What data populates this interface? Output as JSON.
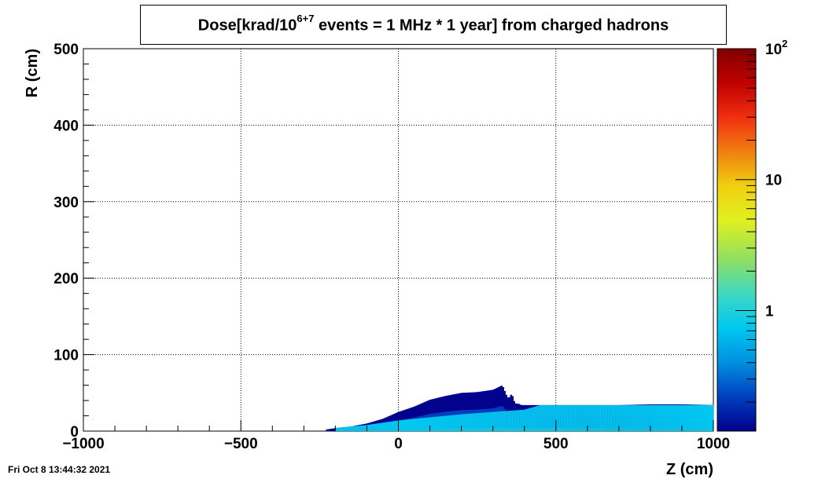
{
  "chart_data": {
    "type": "heatmap",
    "title_main": "Dose[krad/10",
    "title_sup": "6+7",
    "title_rest": " events = 1 MHz * 1 year] from charged hadrons",
    "xlabel": "Z (cm)",
    "ylabel": "R (cm)",
    "xlim": [
      -1000,
      1000
    ],
    "ylim": [
      0,
      500
    ],
    "x_ticks": [
      -1000,
      -500,
      0,
      500,
      1000
    ],
    "x_tick_labels": [
      "−1000",
      "−500",
      "0",
      "500",
      "1000"
    ],
    "y_ticks": [
      0,
      100,
      200,
      300,
      400,
      500
    ],
    "y_tick_labels": [
      "0",
      "100",
      "200",
      "300",
      "400",
      "500"
    ],
    "grid": true,
    "zscale": "log",
    "zlim": [
      0.12,
      100
    ],
    "z_tick_labels": [
      {
        "value": 100,
        "base": "10",
        "sup": "2"
      },
      {
        "value": 10,
        "base": "10",
        "sup": ""
      },
      {
        "value": 1,
        "base": "1",
        "sup": ""
      }
    ],
    "colormap": [
      "#00008c",
      "#0040c0",
      "#0090e0",
      "#00c8f0",
      "#40d8c0",
      "#90e060",
      "#e0f020",
      "#f0d010",
      "#f08010",
      "#f03010",
      "#c00000",
      "#800000"
    ],
    "envelope_z": [
      -230,
      -200,
      -150,
      -100,
      -50,
      0,
      50,
      100,
      150,
      200,
      250,
      300,
      330,
      345,
      350,
      360,
      370,
      380,
      390,
      400,
      450,
      500,
      600,
      700,
      800,
      900,
      1000
    ],
    "envelope_r": [
      2,
      4,
      6,
      10,
      16,
      25,
      32,
      41,
      46,
      50,
      51,
      54,
      60,
      45,
      43,
      49,
      36,
      36,
      34,
      34,
      34,
      34,
      34,
      34,
      35,
      35,
      34
    ],
    "core": [
      {
        "z": [
          -100,
          0,
          100,
          200,
          300,
          400,
          450,
          500,
          700,
          1000
        ],
        "r": [
          1.5,
          2.5,
          3.5,
          4,
          4,
          4,
          4,
          4,
          4,
          4
        ],
        "dose": 5
      },
      {
        "z": [
          -200,
          -100,
          0,
          200,
          400,
          450,
          600,
          800,
          1000
        ],
        "r": [
          4,
          8,
          14,
          22,
          28,
          34,
          34,
          34,
          34
        ],
        "dose": 0.7
      }
    ]
  },
  "footer": {
    "timestamp": "Fri Oct  8 13:44:32 2021"
  }
}
